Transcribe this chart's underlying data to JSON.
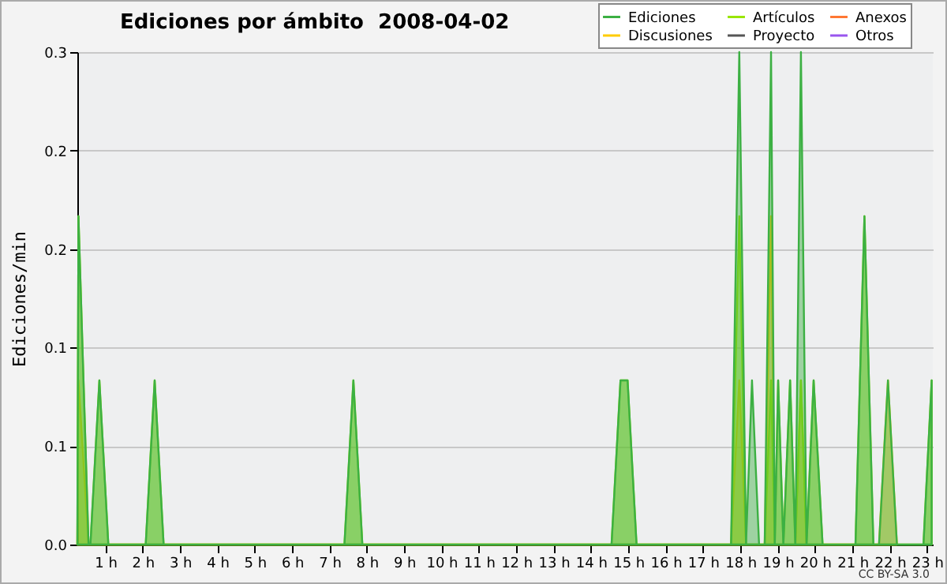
{
  "chart_data": {
    "type": "area",
    "title": "Ediciones por ámbito  2008-04-02",
    "ylabel": "Ediciones/min",
    "annotations": [
      "CC BY-SA 3.0"
    ],
    "xlim": [
      0.25,
      23.15
    ],
    "xticks": [
      {
        "value": 1,
        "label": "1 h"
      },
      {
        "value": 2,
        "label": "2 h"
      },
      {
        "value": 3,
        "label": "3 h"
      },
      {
        "value": 4,
        "label": "4 h"
      },
      {
        "value": 5,
        "label": "5 h"
      },
      {
        "value": 6,
        "label": "6 h"
      },
      {
        "value": 7,
        "label": "7 h"
      },
      {
        "value": 8,
        "label": "8 h"
      },
      {
        "value": 9,
        "label": "9 h"
      },
      {
        "value": 10,
        "label": "10 h"
      },
      {
        "value": 11,
        "label": "11 h"
      },
      {
        "value": 12,
        "label": "12 h"
      },
      {
        "value": 13,
        "label": "13 h"
      },
      {
        "value": 14,
        "label": "14 h"
      },
      {
        "value": 15,
        "label": "15 h"
      },
      {
        "value": 16,
        "label": "16 h"
      },
      {
        "value": 17,
        "label": "17 h"
      },
      {
        "value": 18,
        "label": "18 h"
      },
      {
        "value": 19,
        "label": "19 h"
      },
      {
        "value": 20,
        "label": "20 h"
      },
      {
        "value": 21,
        "label": "21 h"
      },
      {
        "value": 22,
        "label": "22 h"
      },
      {
        "value": 23,
        "label": "23 h"
      }
    ],
    "ylim": [
      0,
      0.3
    ],
    "yticks": [
      {
        "value": 0,
        "label": "0.0"
      },
      {
        "value": 0.06,
        "label": "0.1"
      },
      {
        "value": 0.12,
        "label": "0.1"
      },
      {
        "value": 0.18,
        "label": "0.2"
      },
      {
        "value": 0.24,
        "label": "0.2"
      },
      {
        "value": 0.3,
        "label": "0.3"
      }
    ],
    "grid": "y",
    "legend": "top right",
    "series": [
      {
        "name": "Ediciones",
        "color": "#3cb043",
        "x": [
          0.25,
          0.28,
          0.55,
          0.6,
          0.84,
          1.08,
          2.08,
          2.32,
          2.56,
          7.4,
          7.64,
          7.88,
          14.55,
          14.79,
          14.98,
          15.22,
          17.75,
          17.97,
          18.15,
          18.31,
          18.5,
          18.65,
          18.82,
          18.92,
          19.01,
          19.15,
          19.33,
          19.47,
          19.62,
          19.77,
          19.96,
          20.2,
          21.08,
          21.32,
          21.56,
          21.71,
          21.95,
          22.19,
          22.9,
          23.12
        ],
        "values": [
          0,
          0.2,
          0,
          0,
          0.1,
          0,
          0,
          0.1,
          0,
          0,
          0.1,
          0,
          0,
          0.1,
          0.1,
          0,
          0,
          0.3,
          0,
          0.1,
          0,
          0,
          0.3,
          0,
          0.1,
          0,
          0.1,
          0,
          0.3,
          0,
          0.1,
          0,
          0,
          0.2,
          0,
          0,
          0.1,
          0,
          0,
          0.1
        ]
      },
      {
        "name": "Artículos",
        "color": "#99e600",
        "x": [
          0.25,
          0.28,
          0.55,
          0.6,
          0.84,
          1.08,
          2.08,
          2.32,
          2.56,
          7.4,
          7.64,
          7.88,
          14.55,
          14.79,
          14.98,
          15.22,
          17.75,
          17.97,
          18.15,
          18.31,
          18.5,
          18.65,
          18.82,
          18.92,
          19.01,
          19.15,
          19.33,
          19.47,
          19.62,
          19.77,
          19.96,
          20.2,
          21.08,
          21.32,
          21.56,
          21.71,
          21.95,
          22.19,
          22.9,
          23.12
        ],
        "values": [
          0,
          0.2,
          0,
          0,
          0.1,
          0,
          0,
          0.1,
          0,
          0,
          0.1,
          0,
          0,
          0.1,
          0.1,
          0,
          0,
          0.2,
          0,
          0,
          0,
          0,
          0.1,
          0,
          0.1,
          0,
          0.1,
          0,
          0.1,
          0,
          0.1,
          0,
          0,
          0.2,
          0,
          0,
          0,
          0,
          0,
          0.1
        ]
      },
      {
        "name": "Anexos",
        "color": "#ff7733"
      },
      {
        "name": "Discusiones",
        "color": "#ffcc00",
        "x": [
          0.25,
          0.28,
          0.55,
          17.75,
          17.97,
          18.15,
          18.65,
          18.82,
          18.92,
          19.47,
          19.62,
          19.77,
          21.71,
          21.95,
          22.19
        ],
        "values": [
          0,
          0.1,
          0,
          0,
          0.1,
          0,
          0,
          0.2,
          0,
          0,
          0.1,
          0,
          0,
          0.1,
          0
        ]
      },
      {
        "name": "Proyecto",
        "color": "#555555"
      },
      {
        "name": "Otros",
        "color": "#9955ee"
      }
    ]
  }
}
